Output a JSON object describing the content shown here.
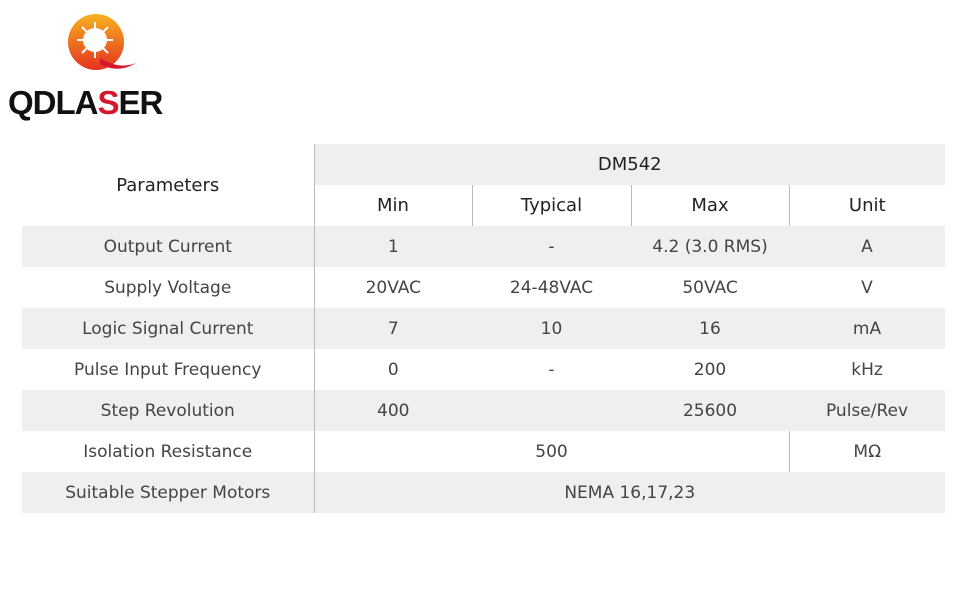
{
  "brand": {
    "name": "QDLASER",
    "colors": {
      "orange": "#f29a1c",
      "red": "#d6162b"
    }
  },
  "table": {
    "corner": "Parameters",
    "model": "DM542",
    "columns": [
      "Min",
      "Typical",
      "Max",
      "Unit"
    ],
    "rows": [
      {
        "param": "Output Current",
        "min": "1",
        "typical": "-",
        "max": "4.2 (3.0 RMS)",
        "unit": "A"
      },
      {
        "param": "Supply Voltage",
        "min": "20VAC",
        "typical": "24-48VAC",
        "max": "50VAC",
        "unit": "V"
      },
      {
        "param": "Logic Signal Current",
        "min": "7",
        "typical": "10",
        "max": "16",
        "unit": "mA"
      },
      {
        "param": "Pulse Input Frequency",
        "min": "0",
        "typical": "-",
        "max": "200",
        "unit": "kHz"
      },
      {
        "param": "Step Revolution",
        "min": "400",
        "typical": "",
        "max": "25600",
        "unit": "Pulse/Rev"
      },
      {
        "param": "Isolation Resistance",
        "value": "500",
        "unit": "MΩ"
      },
      {
        "param": "Suitable Stepper Motors",
        "value": "NEMA 16,17,23"
      }
    ]
  }
}
